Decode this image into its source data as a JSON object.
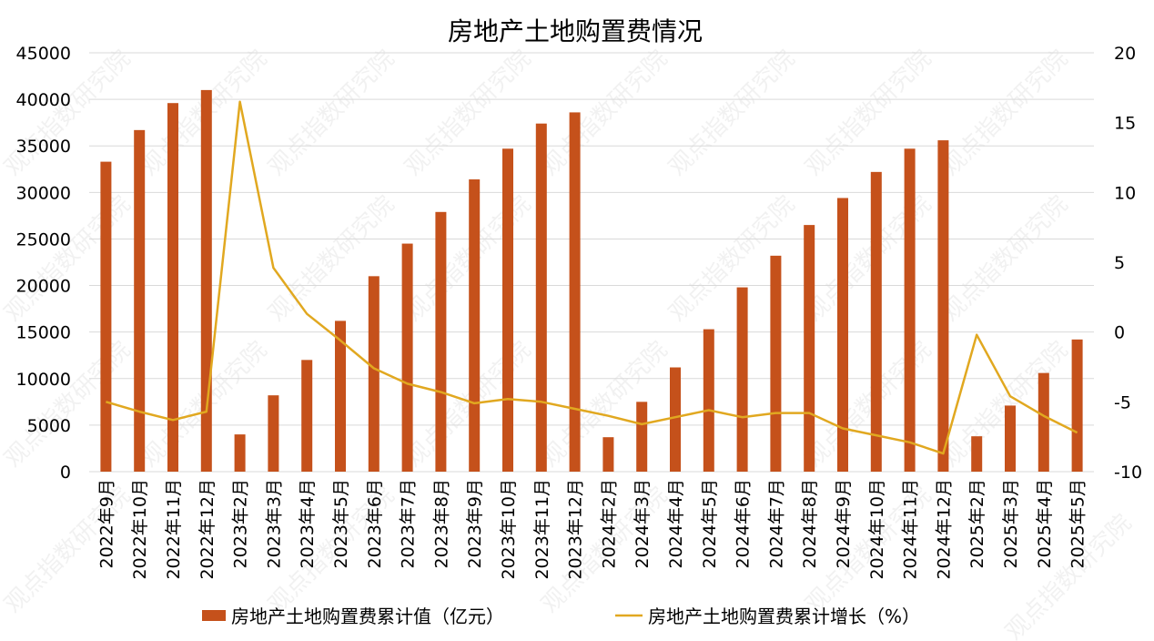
{
  "chart_data": {
    "type": "bar",
    "title": "房地产土地购置费情况",
    "categories": [
      "2022年9月",
      "2022年10月",
      "2022年11月",
      "2022年12月",
      "2023年2月",
      "2023年3月",
      "2023年4月",
      "2023年5月",
      "2023年6月",
      "2023年7月",
      "2023年8月",
      "2023年9月",
      "2023年10月",
      "2023年11月",
      "2023年12月",
      "2024年2月",
      "2024年3月",
      "2024年4月",
      "2024年5月",
      "2024年6月",
      "2024年7月",
      "2024年8月",
      "2024年9月",
      "2024年10月",
      "2024年11月",
      "2024年12月",
      "2025年2月",
      "2025年3月",
      "2025年4月",
      "2025年5月"
    ],
    "series": [
      {
        "name": "房地产土地购置费累计值（亿元）",
        "type": "bar",
        "axis": "left",
        "color": "#c5511b",
        "values": [
          33300,
          36700,
          39600,
          41000,
          4000,
          8200,
          12000,
          16200,
          21000,
          24500,
          27900,
          31400,
          34700,
          37400,
          38600,
          3700,
          7500,
          11200,
          15300,
          19800,
          23200,
          26500,
          29400,
          32200,
          34700,
          35600,
          3800,
          7100,
          10600,
          14200
        ]
      },
      {
        "name": "房地产土地购置费累计增长（%）",
        "type": "line",
        "axis": "right",
        "color": "#e1a820",
        "values": [
          -5.0,
          -5.7,
          -6.3,
          -5.7,
          16.5,
          4.6,
          1.3,
          -0.6,
          -2.6,
          -3.7,
          -4.3,
          -5.1,
          -4.8,
          -5.0,
          -5.5,
          -6.0,
          -6.6,
          -6.1,
          -5.6,
          -6.1,
          -5.8,
          -5.8,
          -6.9,
          -7.4,
          -7.9,
          -8.7,
          -0.2,
          -4.6,
          -6.0,
          -7.2
        ]
      }
    ],
    "y_left": {
      "min": 0,
      "max": 45000,
      "step": 5000,
      "ticks": [
        "0",
        "5000",
        "10000",
        "15000",
        "20000",
        "25000",
        "30000",
        "35000",
        "40000",
        "45000"
      ]
    },
    "y_right": {
      "min": -10,
      "max": 20,
      "step": 5,
      "ticks": [
        "-10",
        "-5",
        "0",
        "5",
        "10",
        "15",
        "20"
      ]
    },
    "grid": true,
    "legend_position": "bottom"
  },
  "watermark": "观点指数研究院"
}
